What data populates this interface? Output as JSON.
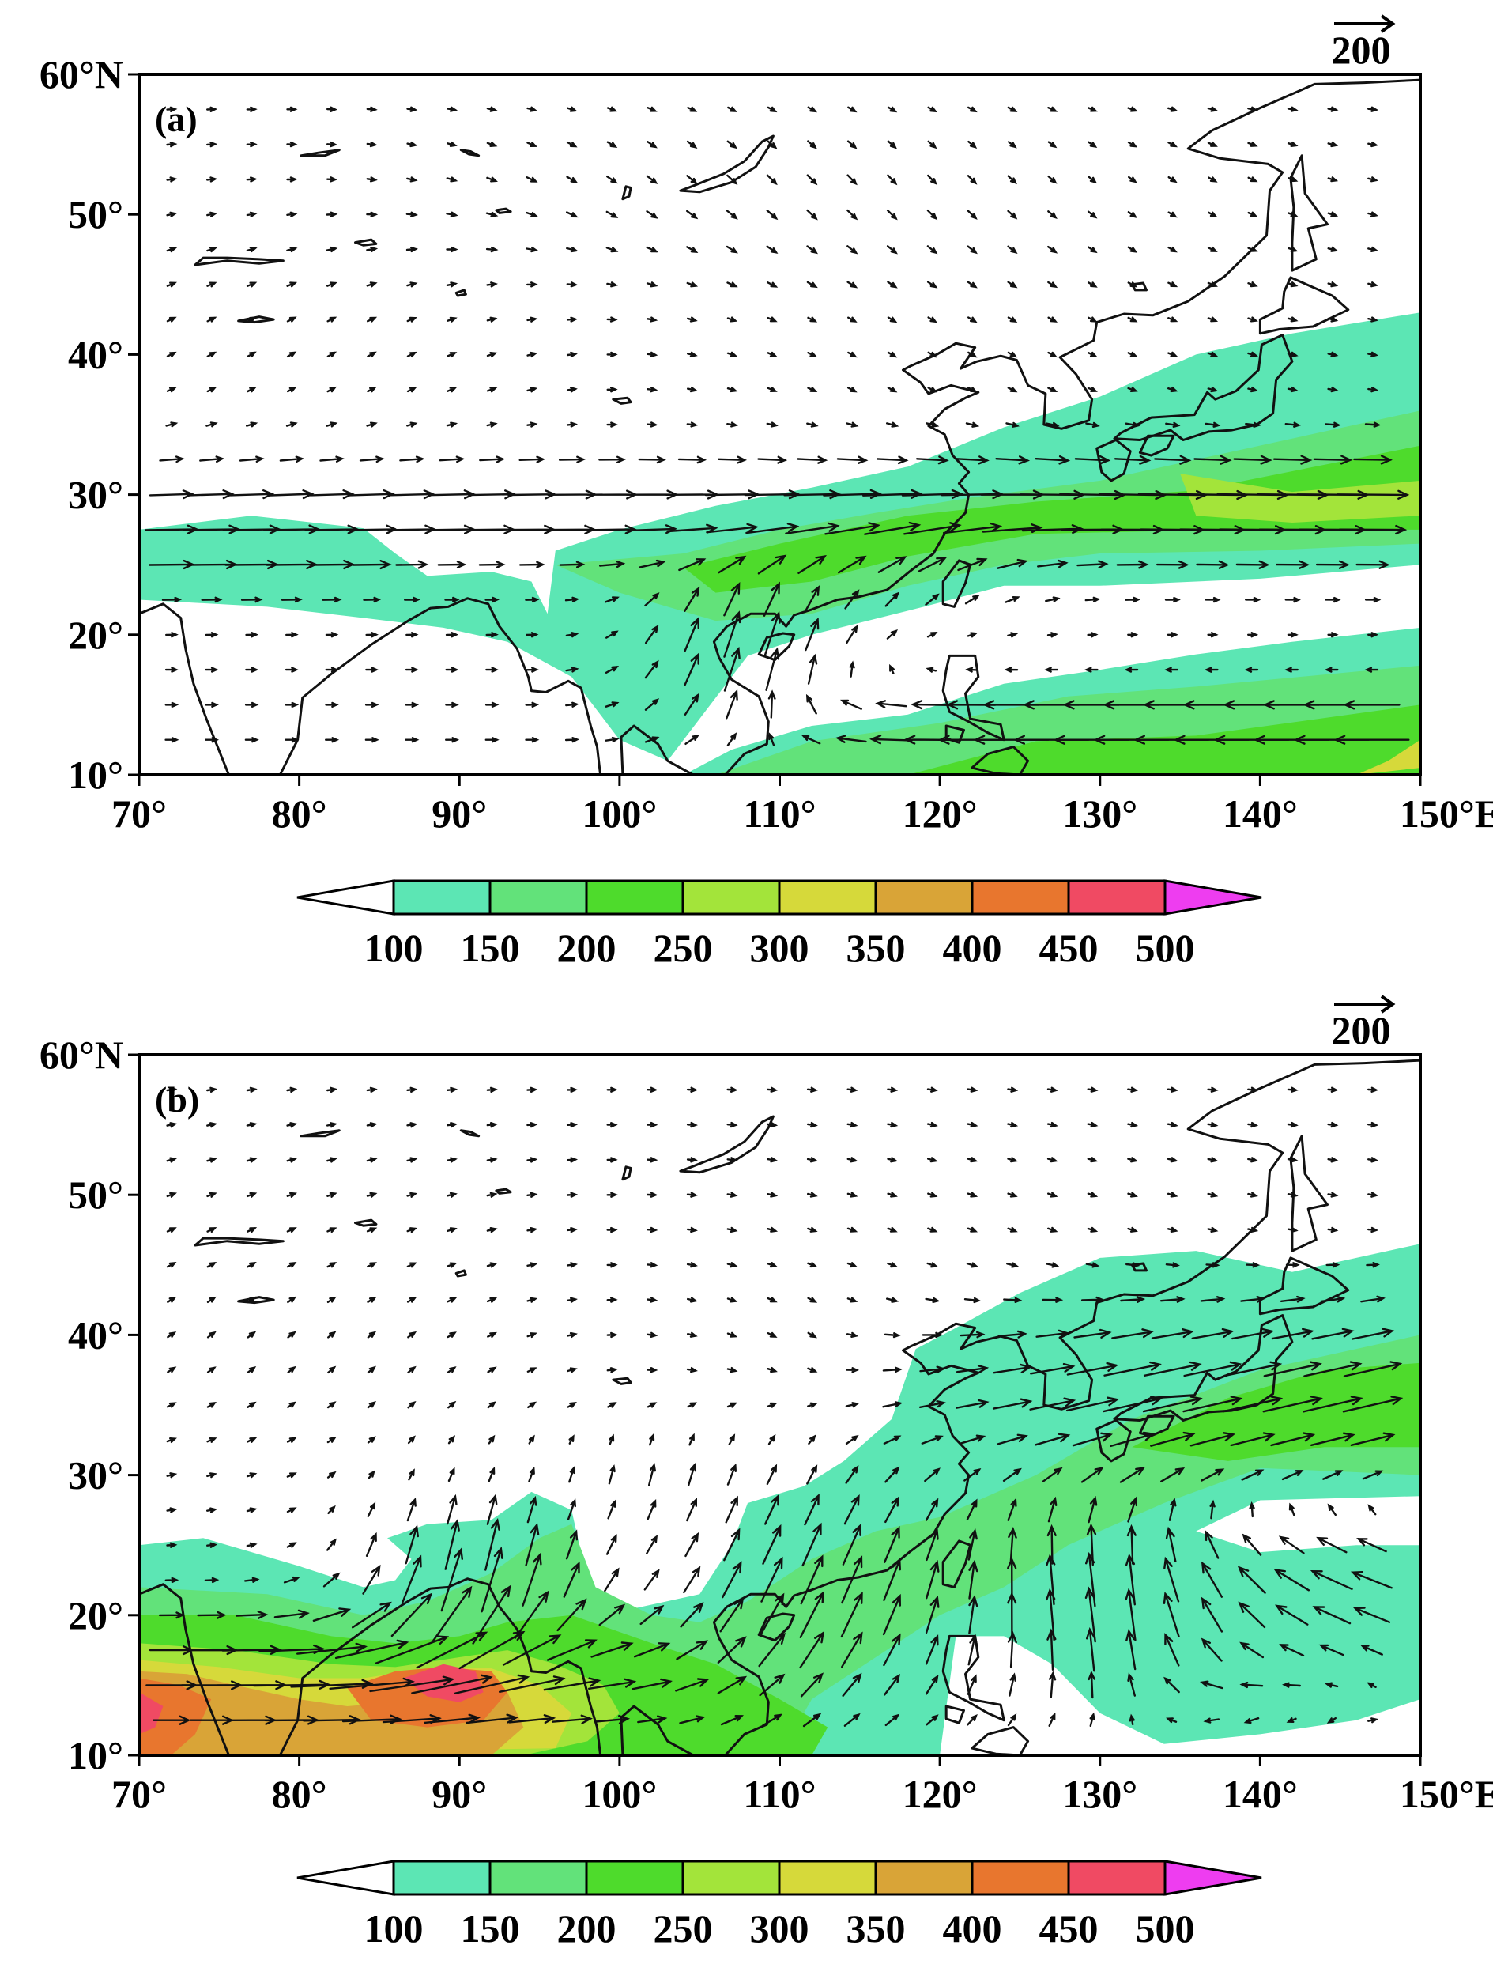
{
  "panels": [
    {
      "id": "a",
      "label": "(a)",
      "reference_vector": "200",
      "lon_ticks": [
        "70°",
        "80°",
        "90°",
        "100°",
        "110°",
        "120°",
        "130°",
        "140°",
        "150°E"
      ],
      "lat_ticks": [
        "60°N",
        "50°",
        "40°",
        "30°",
        "20°",
        "10°"
      ],
      "colorbar_labels": [
        "100",
        "150",
        "200",
        "250",
        "300",
        "350",
        "400",
        "450",
        "500"
      ],
      "colorbar_colors": [
        "#ffffff",
        "#5ce6b4",
        "#62e27a",
        "#4edb2c",
        "#a3e43a",
        "#d6d93a",
        "#d9a437",
        "#e8762e",
        "#f04a63",
        "#ee3df0"
      ],
      "wind_regime": "westerly belt 25-32N, easterlies south of 20N east of 110E"
    },
    {
      "id": "b",
      "label": "(b)",
      "reference_vector": "200",
      "lon_ticks": [
        "70°",
        "80°",
        "90°",
        "100°",
        "110°",
        "120°",
        "130°",
        "140°",
        "150°E"
      ],
      "lat_ticks": [
        "60°N",
        "50°",
        "40°",
        "30°",
        "20°",
        "10°"
      ],
      "colorbar_labels": [
        "100",
        "150",
        "200",
        "250",
        "300",
        "350",
        "400",
        "450",
        "500"
      ],
      "colorbar_colors": [
        "#ffffff",
        "#5ce6b4",
        "#62e27a",
        "#4edb2c",
        "#a3e43a",
        "#d6d93a",
        "#d9a437",
        "#e8762e",
        "#f04a63",
        "#ee3df0"
      ],
      "wind_regime": "strong monsoon flow over Bay of Bengal, southerlies into East Asia"
    }
  ]
}
